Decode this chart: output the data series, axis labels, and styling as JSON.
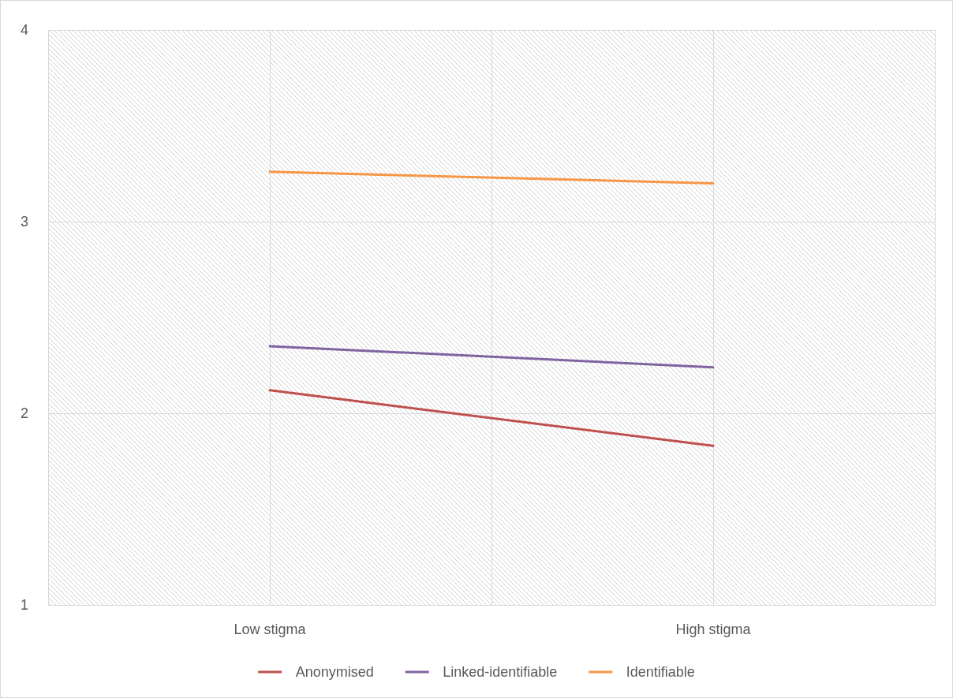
{
  "chart_data": {
    "type": "line",
    "categories": [
      "Low stigma",
      "High stigma"
    ],
    "series": [
      {
        "name": "Anonymised",
        "color": "#c0504d",
        "values": [
          2.12,
          1.83
        ]
      },
      {
        "name": "Linked-identifiable",
        "color": "#8064a2",
        "values": [
          2.35,
          2.24
        ]
      },
      {
        "name": "Identifiable",
        "color": "#f79646",
        "values": [
          3.26,
          3.2
        ]
      }
    ],
    "ylim": [
      1,
      4
    ],
    "yticks": [
      1,
      2,
      3,
      4
    ],
    "grid": true,
    "legend": "bottom",
    "marker": "none",
    "line_style": "solid"
  }
}
